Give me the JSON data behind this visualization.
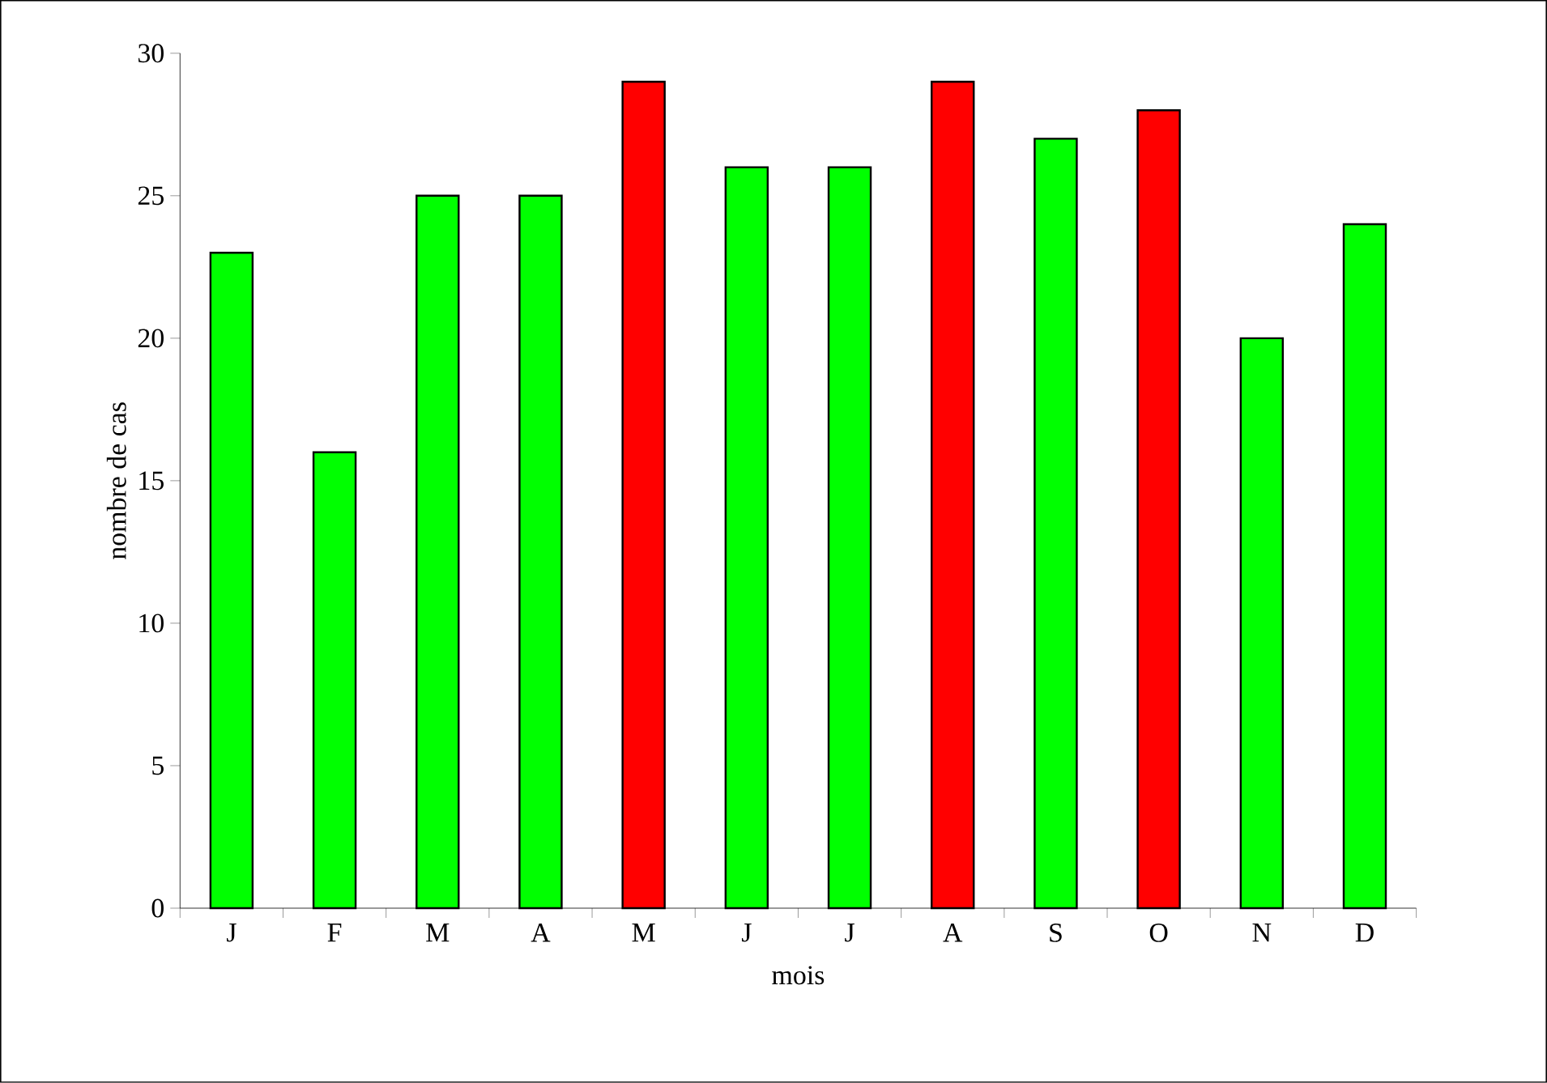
{
  "chart_data": {
    "type": "bar",
    "xlabel": "mois",
    "ylabel": "nombre de cas",
    "categories": [
      "J",
      "F",
      "M",
      "A",
      "M",
      "J",
      "J",
      "A",
      "S",
      "O",
      "N",
      "D"
    ],
    "values": [
      23,
      16,
      25,
      25,
      29,
      26,
      26,
      29,
      27,
      28,
      20,
      24
    ],
    "colors": [
      "#00ff00",
      "#00ff00",
      "#00ff00",
      "#00ff00",
      "#ff0000",
      "#00ff00",
      "#00ff00",
      "#ff0000",
      "#00ff00",
      "#ff0000",
      "#00ff00",
      "#00ff00"
    ],
    "ylim": [
      0,
      30
    ],
    "yticks": [
      0,
      5,
      10,
      15,
      20,
      25,
      30
    ]
  }
}
